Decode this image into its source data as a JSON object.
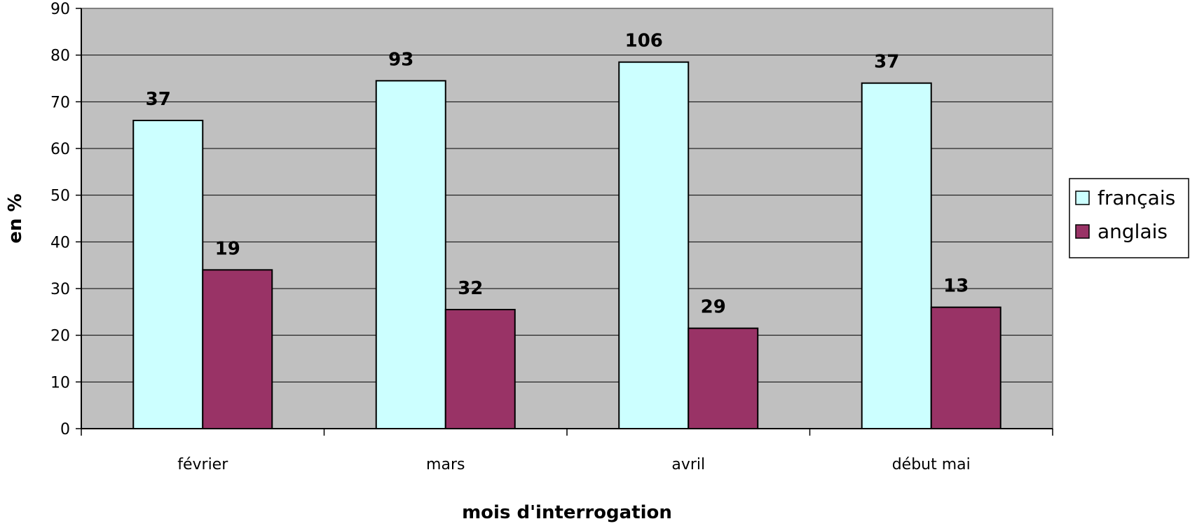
{
  "chart_data": {
    "type": "bar",
    "categories": [
      "février",
      "mars",
      "avril",
      "début mai"
    ],
    "series": [
      {
        "name": "français",
        "color": "#ccffff",
        "values": [
          66,
          74.5,
          78.5,
          74
        ],
        "labels": [
          "37",
          "93",
          "106",
          "37"
        ]
      },
      {
        "name": "anglais",
        "color": "#993366",
        "values": [
          34,
          25.5,
          21.5,
          26
        ],
        "labels": [
          "19",
          "32",
          "29",
          "13"
        ]
      }
    ],
    "title": "",
    "xlabel": "mois d'interrogation",
    "ylabel": "en %",
    "ylim": [
      0,
      90
    ],
    "yticks": [
      "0",
      "10",
      "20",
      "30",
      "40",
      "50",
      "60",
      "70",
      "80",
      "90"
    ],
    "grid": true,
    "plot_background": "#c0c0c0",
    "legend_position": "right"
  }
}
